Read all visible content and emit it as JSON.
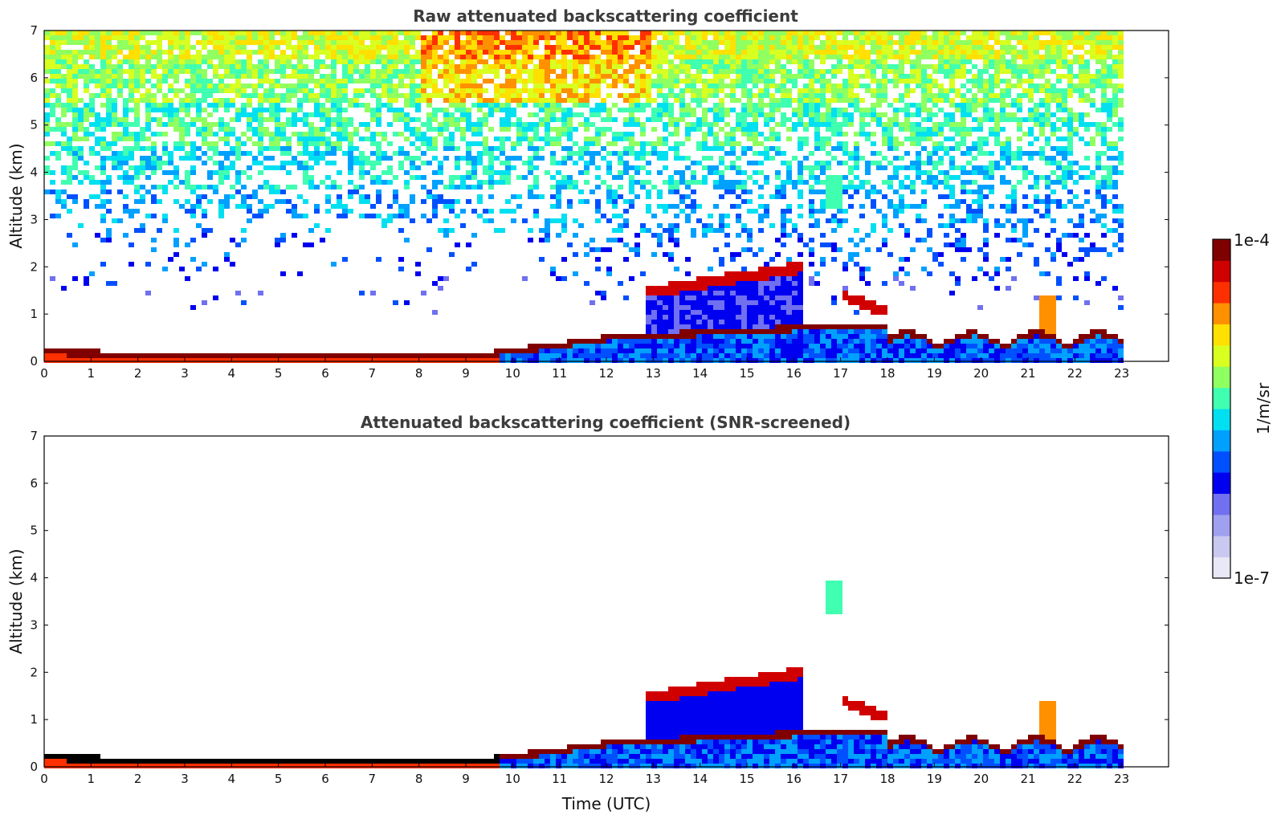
{
  "chart_data": [
    {
      "type": "heatmap",
      "title": "Raw attenuated backscattering coefficient",
      "xlabel": "",
      "ylabel": "Altitude (km)",
      "xlim": [
        0,
        24
      ],
      "ylim": [
        0,
        7
      ],
      "xticks": [
        "0",
        "1",
        "2",
        "3",
        "4",
        "5",
        "6",
        "7",
        "8",
        "9",
        "10",
        "11",
        "12",
        "13",
        "14",
        "15",
        "16",
        "17",
        "18",
        "19",
        "20",
        "21",
        "22",
        "23"
      ],
      "yticks": [
        "0",
        "1",
        "2",
        "3",
        "4",
        "5",
        "6",
        "7"
      ],
      "data_end_hour": 23,
      "features": [
        {
          "label": "boundary layer top",
          "x": [
            0,
            2,
            4,
            6,
            8,
            9,
            10,
            11,
            12
          ],
          "y": [
            0.25,
            0.18,
            0.15,
            0.14,
            0.18,
            0.17,
            0.2,
            0.35,
            0.5
          ]
        },
        {
          "label": "aerosol layer",
          "x": [
            12.8,
            13.5,
            14.5,
            15.5,
            16.1
          ],
          "y": [
            1.45,
            1.5,
            1.55,
            1.7,
            2.0
          ]
        },
        {
          "label": "cloud patch",
          "x": [
            16.8,
            17.0
          ],
          "y": [
            3.5,
            3.6
          ]
        },
        {
          "label": "layer",
          "x": [
            17.0,
            17.5,
            18.0
          ],
          "y": [
            1.4,
            1.25,
            1.05
          ]
        },
        {
          "label": "noisy high-altitude signal",
          "x": [
            0,
            23
          ],
          "y": [
            3,
            7
          ]
        }
      ]
    },
    {
      "type": "heatmap",
      "title": "Attenuated backscattering coefficient (SNR-screened)",
      "xlabel": "Time (UTC)",
      "ylabel": "Altitude (km)",
      "xlim": [
        0,
        24
      ],
      "ylim": [
        0,
        7
      ],
      "xticks": [
        "0",
        "1",
        "2",
        "3",
        "4",
        "5",
        "6",
        "7",
        "8",
        "9",
        "10",
        "11",
        "12",
        "13",
        "14",
        "15",
        "16",
        "17",
        "18",
        "19",
        "20",
        "21",
        "22",
        "23"
      ],
      "yticks": [
        "0",
        "1",
        "2",
        "3",
        "4",
        "5",
        "6",
        "7"
      ],
      "data_end_hour": 23,
      "features": [
        {
          "label": "boundary layer top",
          "x": [
            0,
            2,
            4,
            6,
            8,
            9,
            10,
            11,
            12
          ],
          "y": [
            0.25,
            0.18,
            0.15,
            0.14,
            0.18,
            0.17,
            0.2,
            0.35,
            0.5
          ]
        },
        {
          "label": "aerosol layer",
          "x": [
            12.8,
            13.5,
            14.5,
            15.5,
            16.1
          ],
          "y": [
            1.45,
            1.5,
            1.55,
            1.7,
            2.0
          ]
        },
        {
          "label": "cloud patch",
          "x": [
            16.8,
            17.0
          ],
          "y": [
            3.5,
            3.6
          ]
        }
      ]
    }
  ],
  "colorbar": {
    "max_label": "1e-4",
    "min_label": "1e-7",
    "unit_label": "1/m/sr",
    "scale": "log",
    "colormap": "jet",
    "colors": [
      "#e8e8f6",
      "#c8c8f0",
      "#a0a0f0",
      "#7070f0",
      "#0000f0",
      "#0050ff",
      "#00a0ff",
      "#00e0f0",
      "#40ffb0",
      "#90ff60",
      "#d8ff20",
      "#ffe000",
      "#ff9000",
      "#ff3000",
      "#d00000",
      "#800000"
    ]
  }
}
